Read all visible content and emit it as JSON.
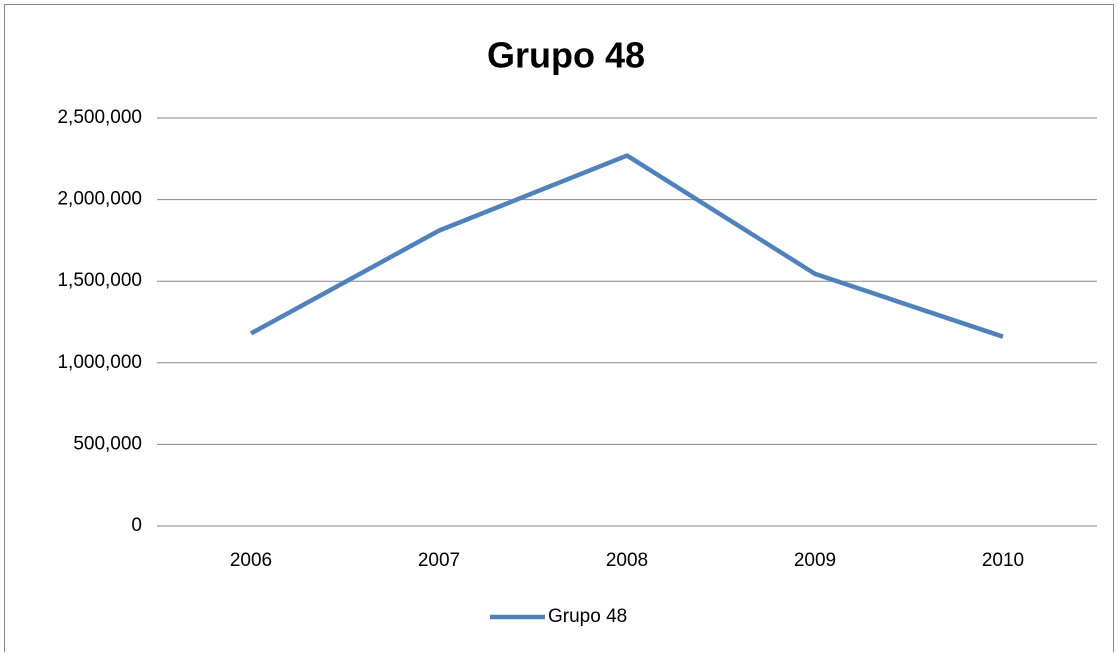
{
  "chart_data": {
    "type": "line",
    "title": "Grupo 48",
    "categories": [
      "2006",
      "2007",
      "2008",
      "2009",
      "2010"
    ],
    "series": [
      {
        "name": "Grupo 48",
        "color": "#4f81bd",
        "values": [
          1180000,
          1810000,
          2270000,
          1545000,
          1160000
        ]
      }
    ],
    "ylim": [
      0,
      2500000
    ],
    "yticks": [
      0,
      {
        "value": 500000,
        "label": "500,000"
      },
      {
        "value": 1000000,
        "label": "1,000,000"
      },
      {
        "value": 1500000,
        "label": "1,500,000"
      },
      {
        "value": 2000000,
        "label": "2,000,000"
      },
      {
        "value": 2500000,
        "label": "2,500,000"
      }
    ],
    "grid": true,
    "legend": "bottom"
  }
}
